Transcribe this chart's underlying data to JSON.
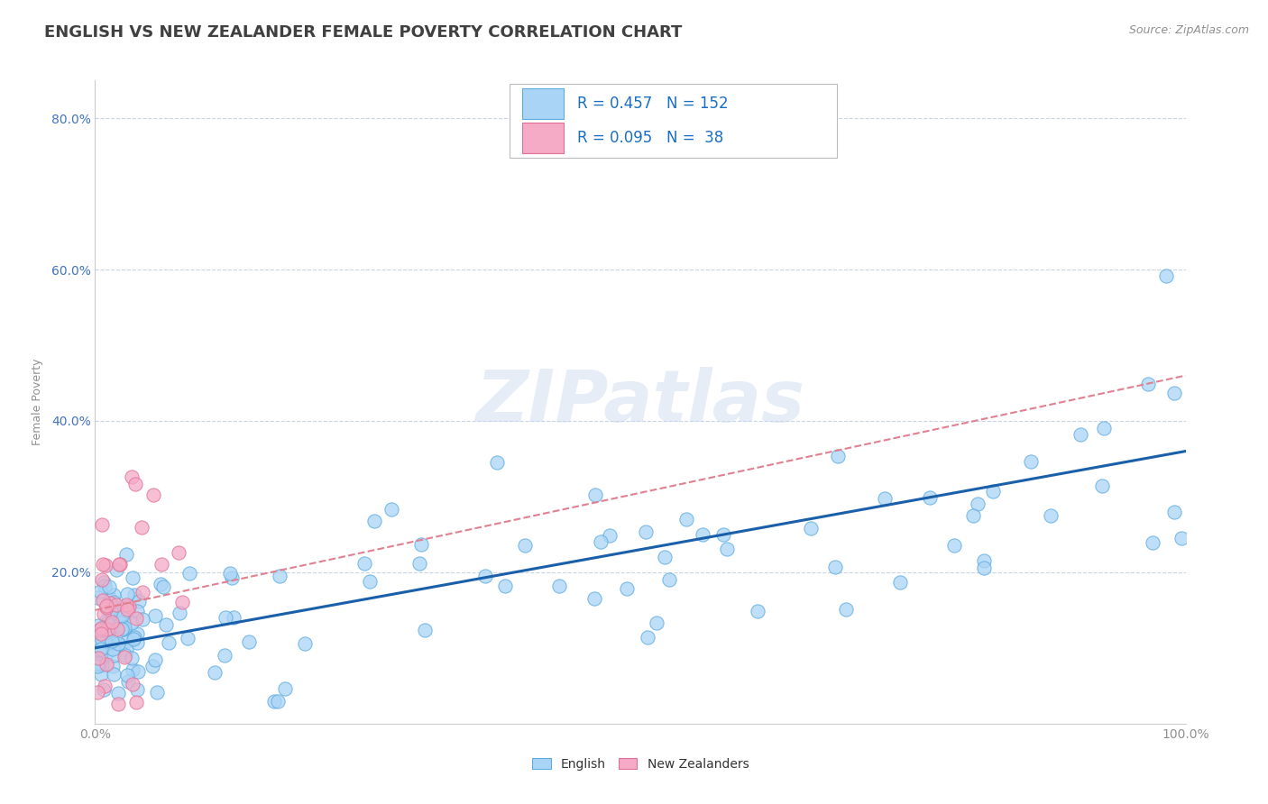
{
  "title": "ENGLISH VS NEW ZEALANDER FEMALE POVERTY CORRELATION CHART",
  "source": "Source: ZipAtlas.com",
  "ylabel": "Female Poverty",
  "legend_r": [
    0.457,
    0.095
  ],
  "legend_n": [
    152,
    38
  ],
  "watermark": "ZIPatlas",
  "english_color": "#aad4f5",
  "nz_color": "#f5aac5",
  "english_edge_color": "#5baae0",
  "nz_edge_color": "#e07095",
  "english_line_color": "#1a5faa",
  "nz_line_color": "#e08090",
  "title_color": "#404040",
  "source_color": "#909090",
  "legend_text_color": "#1a6fc4",
  "axis_label_color": "#909090",
  "yaxis_tick_color": "#4472c4",
  "background_color": "#ffffff",
  "grid_color": "#c8d4e8",
  "ylim": [
    0,
    85
  ],
  "xlim": [
    0,
    100
  ],
  "yticks": [
    20,
    40,
    60,
    80
  ],
  "title_fontsize": 13,
  "label_fontsize": 9,
  "tick_fontsize": 10,
  "eng_line_start_y": 10.0,
  "eng_line_end_y": 36.0,
  "nz_line_start_y": 15.0,
  "nz_line_end_y": 46.0
}
